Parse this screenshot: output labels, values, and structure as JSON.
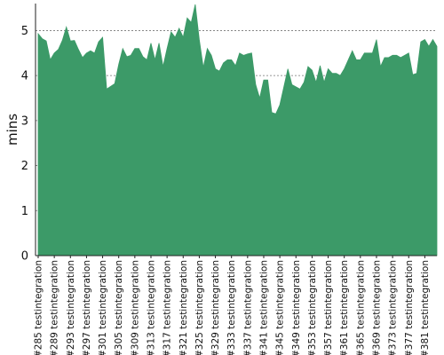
{
  "chart_data": {
    "type": "area",
    "ylabel": "mins",
    "ylim": [
      0,
      5.6
    ],
    "yticks": [
      "0",
      "1",
      "2",
      "3",
      "4",
      "5"
    ],
    "grid": true,
    "x_start": 285,
    "x_suffix": " testintegration",
    "xtick_step": 4,
    "xtick_labels": [
      "#285 testintegration",
      "#289 testintegration",
      "#293 testintegration",
      "#297 testintegration",
      "#301 testintegration",
      "#305 testintegration",
      "#309 testintegration",
      "#313 testintegration",
      "#317 testintegration",
      "#321 testintegration",
      "#325 testintegration",
      "#329 testintegration",
      "#333 testintegration",
      "#337 testintegration",
      "#341 testintegration",
      "#345 testintegration",
      "#349 testintegration",
      "#353 testintegration",
      "#357 testintegration",
      "#361 testintegration",
      "#365 testintegration",
      "#369 testintegration",
      "#373 testintegration",
      "#377 testintegration",
      "#381 testintegration"
    ],
    "series": [
      {
        "color": "#3c9a68",
        "values": [
          4.93,
          4.82,
          4.77,
          4.35,
          4.5,
          4.58,
          4.78,
          5.08,
          4.77,
          4.78,
          4.58,
          4.4,
          4.5,
          4.55,
          4.5,
          4.75,
          4.85,
          3.7,
          3.76,
          3.82,
          4.25,
          4.6,
          4.42,
          4.45,
          4.6,
          4.6,
          4.42,
          4.35,
          4.72,
          4.35,
          4.72,
          4.2,
          4.6,
          4.97,
          4.85,
          5.05,
          4.85,
          5.28,
          5.18,
          5.58,
          4.8,
          4.18,
          4.6,
          4.45,
          4.15,
          4.1,
          4.28,
          4.35,
          4.35,
          4.22,
          4.5,
          4.45,
          4.48,
          4.5,
          3.8,
          3.5,
          3.9,
          3.9,
          3.18,
          3.15,
          3.35,
          3.75,
          4.15,
          3.8,
          3.75,
          3.7,
          3.85,
          4.2,
          4.12,
          3.85,
          4.22,
          3.85,
          4.15,
          4.05,
          4.05,
          4.0,
          4.15,
          4.35,
          4.55,
          4.35,
          4.35,
          4.5,
          4.5,
          4.5,
          4.8,
          4.2,
          4.4,
          4.4,
          4.45,
          4.45,
          4.4,
          4.45,
          4.5,
          4.02,
          4.05,
          4.75,
          4.8,
          4.65,
          4.8,
          4.65
        ]
      }
    ]
  }
}
